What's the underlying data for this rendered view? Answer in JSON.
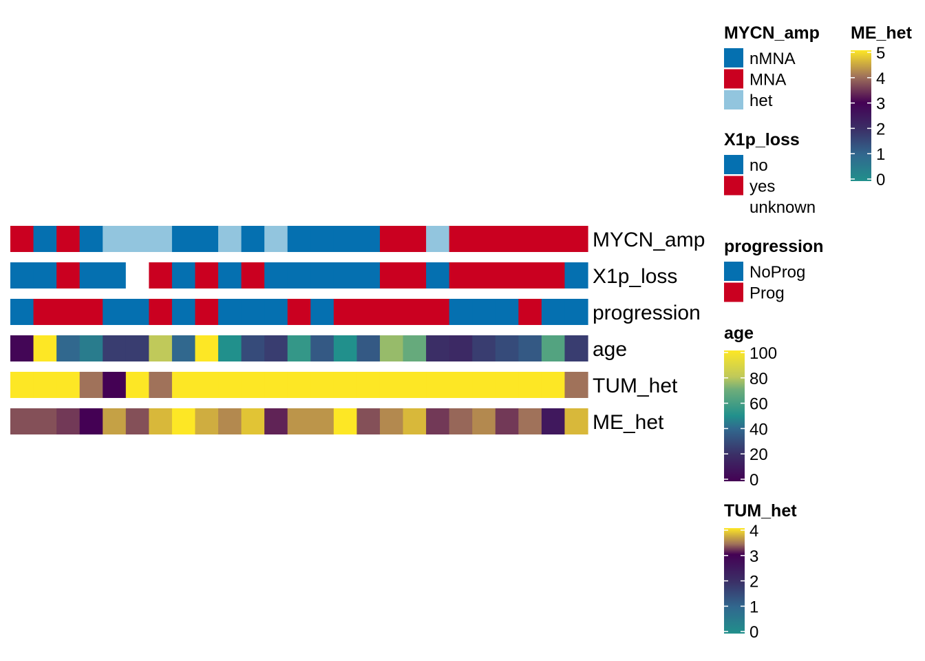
{
  "chart_data": {
    "type": "heatmap",
    "rows": [
      {
        "name": "MYCN_amp",
        "kind": "categorical",
        "values": [
          "MNA",
          "nMNA",
          "MNA",
          "nMNA",
          "het",
          "het",
          "het",
          "nMNA",
          "nMNA",
          "het",
          "nMNA",
          "het",
          "nMNA",
          "nMNA",
          "nMNA",
          "nMNA",
          "MNA",
          "MNA",
          "het",
          "MNA",
          "MNA",
          "MNA",
          "MNA",
          "MNA",
          "MNA"
        ]
      },
      {
        "name": "X1p_loss",
        "kind": "categorical",
        "values": [
          "no",
          "no",
          "yes",
          "no",
          "no",
          "unknown",
          "yes",
          "no",
          "yes",
          "no",
          "yes",
          "no",
          "no",
          "no",
          "no",
          "no",
          "yes",
          "yes",
          "no",
          "yes",
          "yes",
          "yes",
          "yes",
          "yes",
          "no"
        ]
      },
      {
        "name": "progression",
        "kind": "categorical",
        "values": [
          "NoProg",
          "Prog",
          "Prog",
          "Prog",
          "NoProg",
          "NoProg",
          "Prog",
          "NoProg",
          "Prog",
          "NoProg",
          "NoProg",
          "NoProg",
          "Prog",
          "NoProg",
          "Prog",
          "Prog",
          "Prog",
          "Prog",
          "Prog",
          "NoProg",
          "NoProg",
          "NoProg",
          "Prog",
          "NoProg",
          "NoProg"
        ]
      },
      {
        "name": "age",
        "kind": "continuous",
        "scale": "age",
        "values": [
          2,
          100,
          40,
          45,
          25,
          25,
          80,
          40,
          100,
          50,
          30,
          25,
          55,
          35,
          50,
          35,
          75,
          68,
          20,
          18,
          25,
          30,
          35,
          63,
          25
        ]
      },
      {
        "name": "TUM_het",
        "kind": "continuous",
        "scale": "TUM_het",
        "values": [
          4,
          4,
          4,
          3.4,
          3,
          4,
          3.4,
          4,
          4,
          4,
          4,
          4,
          4,
          4,
          4,
          4,
          4,
          4,
          4,
          4,
          4,
          4,
          4,
          4,
          3.4
        ]
      },
      {
        "name": "ME_het",
        "kind": "continuous",
        "scale": "ME_het",
        "values": [
          3.7,
          3.7,
          3.5,
          3,
          4.4,
          3.7,
          4.6,
          5,
          4.5,
          4.2,
          4.7,
          3.3,
          4.3,
          4.3,
          5,
          3.7,
          4.2,
          4.6,
          3.5,
          3.9,
          4.2,
          3.5,
          4,
          2.5,
          4.6
        ]
      }
    ],
    "legends": [
      {
        "title": "MYCN_amp",
        "type": "discrete",
        "items": [
          {
            "label": "nMNA",
            "color": "#0570b0"
          },
          {
            "label": "MNA",
            "color": "#ca0020"
          },
          {
            "label": "het",
            "color": "#92c5de"
          }
        ]
      },
      {
        "title": "X1p_loss",
        "type": "discrete",
        "items": [
          {
            "label": "no",
            "color": "#0570b0"
          },
          {
            "label": "yes",
            "color": "#ca0020"
          },
          {
            "label": "unknown",
            "color": "#ffffff"
          }
        ]
      },
      {
        "title": "progression",
        "type": "discrete",
        "items": [
          {
            "label": "NoProg",
            "color": "#0570b0"
          },
          {
            "label": "Prog",
            "color": "#ca0020"
          }
        ]
      },
      {
        "title": "age",
        "type": "continuous",
        "scale": "age",
        "ticks": [
          "100",
          "80",
          "60",
          "40",
          "20",
          "0"
        ]
      },
      {
        "title": "TUM_het",
        "type": "continuous",
        "scale": "TUM_het",
        "ticks": [
          "4",
          "3",
          "2",
          "1",
          "0"
        ]
      },
      {
        "title": "ME_het",
        "type": "continuous",
        "scale": "ME_het",
        "ticks": [
          "5",
          "4",
          "3",
          "2",
          "1",
          "0"
        ]
      }
    ],
    "scales": {
      "age": {
        "domain": [
          0,
          100
        ],
        "stops": [
          [
            0,
            "#440154"
          ],
          [
            0.2,
            "#3b2e66"
          ],
          [
            0.4,
            "#31688e"
          ],
          [
            0.5,
            "#21908c"
          ],
          [
            0.7,
            "#6ead7a"
          ],
          [
            0.8,
            "#c0c95a"
          ],
          [
            1,
            "#fde725"
          ]
        ]
      },
      "TUM_het": {
        "domain": [
          0,
          4
        ],
        "stops": [
          [
            0,
            "#21908c"
          ],
          [
            0.25,
            "#31688e"
          ],
          [
            0.5,
            "#3b2e66"
          ],
          [
            0.75,
            "#440154"
          ],
          [
            0.85,
            "#a0725a"
          ],
          [
            1,
            "#fde725"
          ]
        ]
      },
      "ME_het": {
        "domain": [
          0,
          5
        ],
        "stops": [
          [
            0,
            "#21908c"
          ],
          [
            0.2,
            "#31688e"
          ],
          [
            0.4,
            "#3b2e66"
          ],
          [
            0.6,
            "#440154"
          ],
          [
            0.8,
            "#a0725a"
          ],
          [
            1,
            "#fde725"
          ]
        ]
      }
    }
  }
}
